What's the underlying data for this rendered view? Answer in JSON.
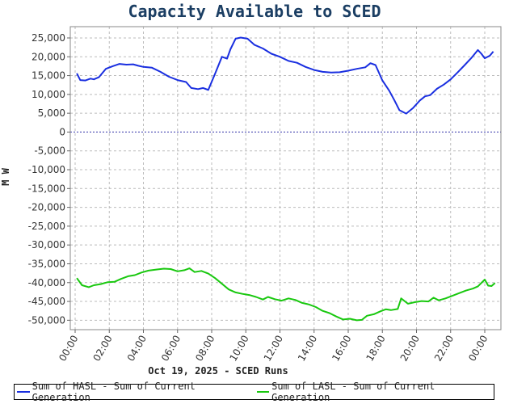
{
  "chart_data": {
    "type": "line",
    "title": "Capacity Available to SCED",
    "xlabel": "Oct 19, 2025 - SCED Runs",
    "ylabel": "M W",
    "ylim": [
      -52500,
      28000
    ],
    "xlim": [
      0,
      24
    ],
    "grid": true,
    "legend_position": "bottom",
    "y_ticks": [
      25000,
      20000,
      15000,
      10000,
      5000,
      0,
      -5000,
      -10000,
      -15000,
      -20000,
      -25000,
      -30000,
      -35000,
      -40000,
      -45000,
      -50000
    ],
    "y_tick_labels": [
      "25,000",
      "20,000",
      "15,000",
      "10,000",
      "5,000",
      "0",
      "-5,000",
      "-10,000",
      "-15,000",
      "-20,000",
      "-25,000",
      "-30,000",
      "-35,000",
      "-40,000",
      "-45,000",
      "-50,000"
    ],
    "x_ticks": [
      0,
      2,
      4,
      6,
      8,
      10,
      12,
      14,
      16,
      18,
      20,
      22,
      24
    ],
    "x_tick_labels": [
      "00:00",
      "02:00",
      "04:00",
      "06:00",
      "08:00",
      "10:00",
      "12:00",
      "14:00",
      "16:00",
      "18:00",
      "20:00",
      "22:00",
      "00:00"
    ],
    "zero_line_color": "#3333aa",
    "series": [
      {
        "name": "Sum of HASL - Sum of Current Generation",
        "color": "#1a2fe0",
        "points": [
          [
            0.1,
            15600
          ],
          [
            0.3,
            13800
          ],
          [
            0.6,
            13700
          ],
          [
            0.9,
            14200
          ],
          [
            1.1,
            14000
          ],
          [
            1.4,
            14600
          ],
          [
            1.8,
            16800
          ],
          [
            2.2,
            17500
          ],
          [
            2.6,
            18100
          ],
          [
            3.0,
            17900
          ],
          [
            3.4,
            18000
          ],
          [
            3.7,
            17600
          ],
          [
            4.0,
            17300
          ],
          [
            4.5,
            17100
          ],
          [
            5.0,
            16000
          ],
          [
            5.5,
            14700
          ],
          [
            6.0,
            13800
          ],
          [
            6.5,
            13300
          ],
          [
            6.8,
            11700
          ],
          [
            7.2,
            11400
          ],
          [
            7.5,
            11700
          ],
          [
            7.8,
            11200
          ],
          [
            8.2,
            15500
          ],
          [
            8.6,
            20000
          ],
          [
            8.9,
            19500
          ],
          [
            9.1,
            22000
          ],
          [
            9.4,
            24800
          ],
          [
            9.7,
            25100
          ],
          [
            10.1,
            24800
          ],
          [
            10.5,
            23200
          ],
          [
            11.0,
            22200
          ],
          [
            11.5,
            20800
          ],
          [
            12.0,
            20000
          ],
          [
            12.5,
            18900
          ],
          [
            13.0,
            18400
          ],
          [
            13.5,
            17300
          ],
          [
            14.0,
            16500
          ],
          [
            14.5,
            16000
          ],
          [
            15.0,
            15800
          ],
          [
            15.5,
            15900
          ],
          [
            16.0,
            16300
          ],
          [
            16.5,
            16800
          ],
          [
            17.0,
            17200
          ],
          [
            17.3,
            18300
          ],
          [
            17.6,
            17800
          ],
          [
            18.0,
            13700
          ],
          [
            18.4,
            11000
          ],
          [
            18.7,
            8500
          ],
          [
            19.0,
            5800
          ],
          [
            19.4,
            4900
          ],
          [
            19.8,
            6400
          ],
          [
            20.2,
            8400
          ],
          [
            20.5,
            9500
          ],
          [
            20.8,
            9800
          ],
          [
            21.2,
            11500
          ],
          [
            21.6,
            12600
          ],
          [
            22.0,
            14000
          ],
          [
            22.4,
            15800
          ],
          [
            22.8,
            17700
          ],
          [
            23.2,
            19600
          ],
          [
            23.6,
            21800
          ],
          [
            23.8,
            20800
          ],
          [
            24.0,
            19600
          ],
          [
            24.3,
            20300
          ],
          [
            24.5,
            21400
          ]
        ]
      },
      {
        "name": "Sum of LASL - Sum of Current Generation",
        "color": "#19c80f",
        "points": [
          [
            0.1,
            -38800
          ],
          [
            0.4,
            -40700
          ],
          [
            0.8,
            -41200
          ],
          [
            1.1,
            -40700
          ],
          [
            1.5,
            -40400
          ],
          [
            1.9,
            -39900
          ],
          [
            2.3,
            -39800
          ],
          [
            2.7,
            -39000
          ],
          [
            3.1,
            -38300
          ],
          [
            3.5,
            -38000
          ],
          [
            3.9,
            -37300
          ],
          [
            4.3,
            -36800
          ],
          [
            4.8,
            -36500
          ],
          [
            5.2,
            -36300
          ],
          [
            5.6,
            -36400
          ],
          [
            6.0,
            -37000
          ],
          [
            6.4,
            -36700
          ],
          [
            6.7,
            -36200
          ],
          [
            7.0,
            -37200
          ],
          [
            7.4,
            -36900
          ],
          [
            7.8,
            -37600
          ],
          [
            8.2,
            -38800
          ],
          [
            8.6,
            -40300
          ],
          [
            9.0,
            -41800
          ],
          [
            9.4,
            -42600
          ],
          [
            9.8,
            -43000
          ],
          [
            10.2,
            -43300
          ],
          [
            10.6,
            -43800
          ],
          [
            11.0,
            -44500
          ],
          [
            11.3,
            -43800
          ],
          [
            11.7,
            -44400
          ],
          [
            12.1,
            -44800
          ],
          [
            12.5,
            -44200
          ],
          [
            12.9,
            -44600
          ],
          [
            13.3,
            -45400
          ],
          [
            13.7,
            -45800
          ],
          [
            14.1,
            -46500
          ],
          [
            14.5,
            -47500
          ],
          [
            14.9,
            -48100
          ],
          [
            15.3,
            -49000
          ],
          [
            15.7,
            -49800
          ],
          [
            16.1,
            -49600
          ],
          [
            16.5,
            -50000
          ],
          [
            16.8,
            -49900
          ],
          [
            17.1,
            -48800
          ],
          [
            17.5,
            -48400
          ],
          [
            17.9,
            -47600
          ],
          [
            18.2,
            -47100
          ],
          [
            18.5,
            -47300
          ],
          [
            18.9,
            -47000
          ],
          [
            19.1,
            -44200
          ],
          [
            19.5,
            -45600
          ],
          [
            19.9,
            -45200
          ],
          [
            20.3,
            -44900
          ],
          [
            20.7,
            -45000
          ],
          [
            21.0,
            -44000
          ],
          [
            21.3,
            -44700
          ],
          [
            21.7,
            -44200
          ],
          [
            22.1,
            -43500
          ],
          [
            22.5,
            -42800
          ],
          [
            22.9,
            -42100
          ],
          [
            23.3,
            -41600
          ],
          [
            23.6,
            -41000
          ],
          [
            24.0,
            -39200
          ],
          [
            24.2,
            -40800
          ],
          [
            24.4,
            -40900
          ],
          [
            24.6,
            -40100
          ]
        ]
      }
    ]
  }
}
